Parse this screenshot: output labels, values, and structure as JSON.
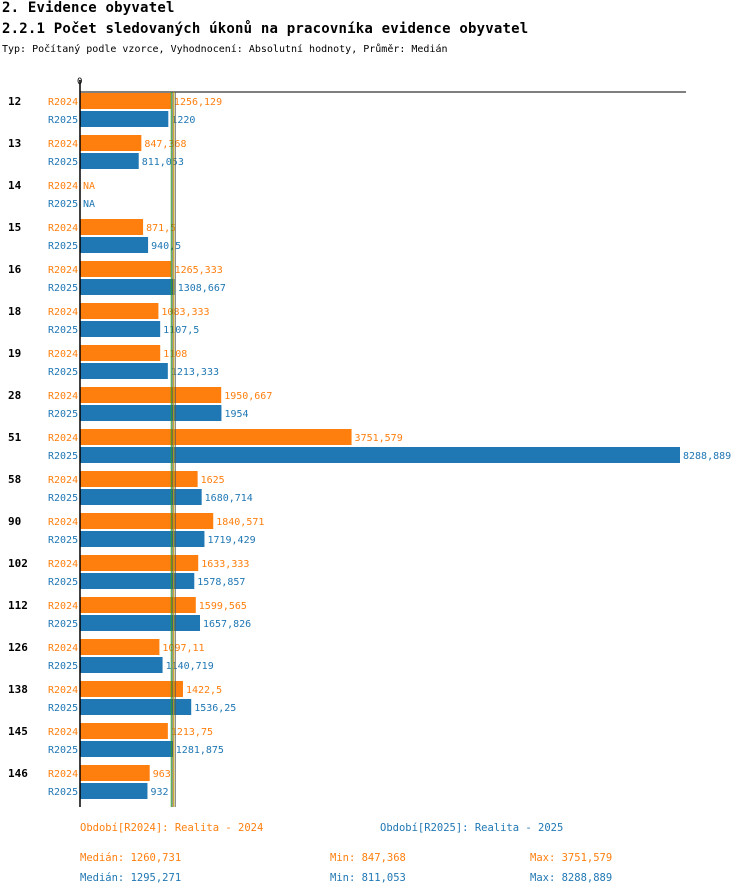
{
  "heading": "2. Evidence obyvatel",
  "subheading": "2.2.1 Počet sledovaných úkonů na pracovníka evidence obyvatel",
  "meta": "Typ: Počítaný podle vzorce, Vyhodnocení: Absolutní hodnoty, Průměr: Medián",
  "colors": {
    "r2024": "#ff7f0e",
    "r2025": "#1f77b4",
    "median": "#c8a800"
  },
  "chart_data": {
    "type": "bar",
    "orientation": "horizontal",
    "axis_zero_label": "0",
    "xlim": [
      0,
      8288.889
    ],
    "categories": [
      "12",
      "13",
      "14",
      "15",
      "16",
      "18",
      "19",
      "28",
      "51",
      "58",
      "90",
      "102",
      "112",
      "126",
      "138",
      "145",
      "146"
    ],
    "series": [
      {
        "name": "R2024",
        "values": [
          1256.129,
          847.368,
          null,
          871.5,
          1265.333,
          1083.333,
          1108,
          1950.667,
          3751.579,
          1625,
          1840.571,
          1633.333,
          1599.565,
          1097.11,
          1422.5,
          1213.75,
          963
        ],
        "labels": [
          "1256,129",
          "847,368",
          "NA",
          "871,5",
          "1265,333",
          "1083,333",
          "1108",
          "1950,667",
          "3751,579",
          "1625",
          "1840,571",
          "1633,333",
          "1599,565",
          "1097,11",
          "1422,5",
          "1213,75",
          "963"
        ]
      },
      {
        "name": "R2025",
        "values": [
          1220,
          811.053,
          null,
          940.5,
          1308.667,
          1107.5,
          1213.333,
          1954,
          8288.889,
          1680.714,
          1719.429,
          1578.857,
          1657.826,
          1140.719,
          1536.25,
          1281.875,
          932
        ],
        "labels": [
          "1220",
          "811,053",
          "NA",
          "940,5",
          "1308,667",
          "1107,5",
          "1213,333",
          "1954",
          "8288,889",
          "1680,714",
          "1719,429",
          "1578,857",
          "1657,826",
          "1140,719",
          "1536,25",
          "1281,875",
          "932"
        ]
      }
    ],
    "medians": [
      1260.731,
      1295.271
    ]
  },
  "legend": {
    "r2024": "Období[R2024]: Realita - 2024",
    "r2025": "Období[R2025]: Realita - 2025"
  },
  "stats": {
    "r2024": {
      "median": "Medián: 1260,731",
      "min": "Min: 847,368",
      "max": "Max: 3751,579"
    },
    "r2025": {
      "median": "Medián: 1295,271",
      "min": "Min: 811,053",
      "max": "Max: 8288,889"
    }
  }
}
